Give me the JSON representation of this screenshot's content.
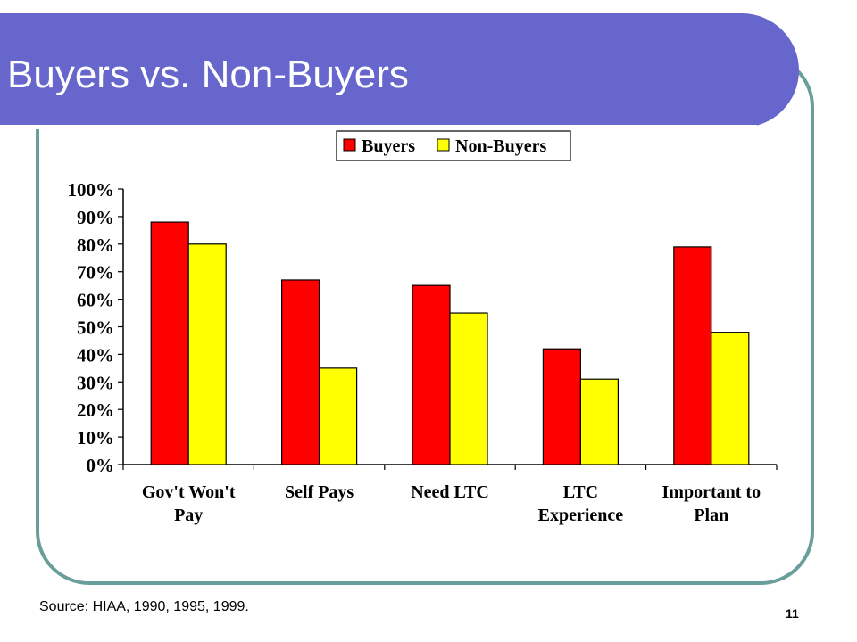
{
  "slide": {
    "title": "Buyers vs. Non-Buyers",
    "source": "Source: HIAA, 1990, 1995, 1999.",
    "page_number": "11"
  },
  "colors": {
    "banner": "#6666cc",
    "frame": "#6a9e9a",
    "buyers": "#ff0000",
    "non_buyers": "#ffff00"
  },
  "chart_data": {
    "type": "bar",
    "title": "",
    "xlabel": "",
    "ylabel": "",
    "categories": [
      [
        "Gov't Won't",
        "Pay"
      ],
      [
        "Self Pays"
      ],
      [
        "Need LTC"
      ],
      [
        "LTC",
        "Experience"
      ],
      [
        "Important to",
        "Plan"
      ]
    ],
    "series": [
      {
        "name": "Buyers",
        "color": "#ff0000",
        "values": [
          88,
          67,
          65,
          42,
          79
        ]
      },
      {
        "name": "Non-Buyers",
        "color": "#ffff00",
        "values": [
          80,
          35,
          55,
          31,
          48
        ]
      }
    ],
    "ylim": [
      0,
      100
    ],
    "yticks": [
      "0%",
      "10%",
      "20%",
      "30%",
      "40%",
      "50%",
      "60%",
      "70%",
      "80%",
      "90%",
      "100%"
    ],
    "legend_position": "top-center",
    "grid": false
  }
}
